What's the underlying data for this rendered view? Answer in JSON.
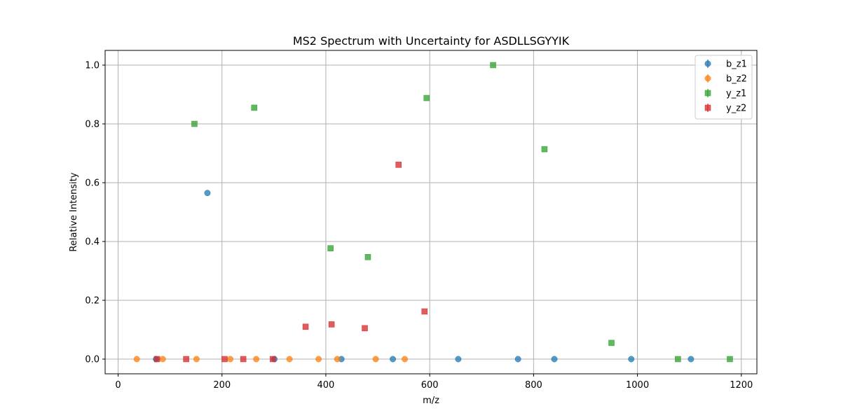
{
  "chart_data": {
    "type": "scatter",
    "title": "MS2 Spectrum with Uncertainty for ASDLLSGYYIK",
    "xlabel": "m/z",
    "ylabel": "Relative Intensity",
    "xlim": [
      -25,
      1230
    ],
    "ylim": [
      -0.05,
      1.05
    ],
    "xticks": [
      0,
      200,
      400,
      600,
      800,
      1000,
      1200
    ],
    "yticks": [
      0.0,
      0.2,
      0.4,
      0.6,
      0.8,
      1.0
    ],
    "grid": true,
    "legend_position": "top-right",
    "series": [
      {
        "name": "b_z1",
        "marker": "circle",
        "color": "#1f77b4",
        "points": [
          [
            73,
            0
          ],
          [
            172,
            0.565
          ],
          [
            301,
            0
          ],
          [
            430,
            0
          ],
          [
            529,
            0
          ],
          [
            655,
            0
          ],
          [
            770,
            0
          ],
          [
            840,
            0
          ],
          [
            988,
            0
          ],
          [
            1103,
            0
          ]
        ]
      },
      {
        "name": "b_z2",
        "marker": "circle",
        "color": "#ff7f0e",
        "points": [
          [
            36,
            0
          ],
          [
            86,
            0
          ],
          [
            151,
            0
          ],
          [
            216,
            0
          ],
          [
            266,
            0
          ],
          [
            330,
            0
          ],
          [
            386,
            0
          ],
          [
            422,
            0
          ],
          [
            496,
            0
          ],
          [
            552,
            0
          ]
        ]
      },
      {
        "name": "y_z1",
        "marker": "square",
        "color": "#2ca02c",
        "points": [
          [
            147,
            0.8
          ],
          [
            262,
            0.855
          ],
          [
            409,
            0.377
          ],
          [
            481,
            0.347
          ],
          [
            594,
            0.888
          ],
          [
            722,
            1.0
          ],
          [
            821,
            0.714
          ],
          [
            950,
            0.055
          ],
          [
            1078,
            0
          ],
          [
            1178,
            0
          ]
        ]
      },
      {
        "name": "y_z2",
        "marker": "square",
        "color": "#d62728",
        "points": [
          [
            75,
            0
          ],
          [
            131,
            0
          ],
          [
            205,
            0
          ],
          [
            241,
            0
          ],
          [
            298,
            0
          ],
          [
            361,
            0.11
          ],
          [
            411,
            0.118
          ],
          [
            475,
            0.105
          ],
          [
            540,
            0.661
          ],
          [
            590,
            0.162
          ]
        ]
      }
    ]
  }
}
